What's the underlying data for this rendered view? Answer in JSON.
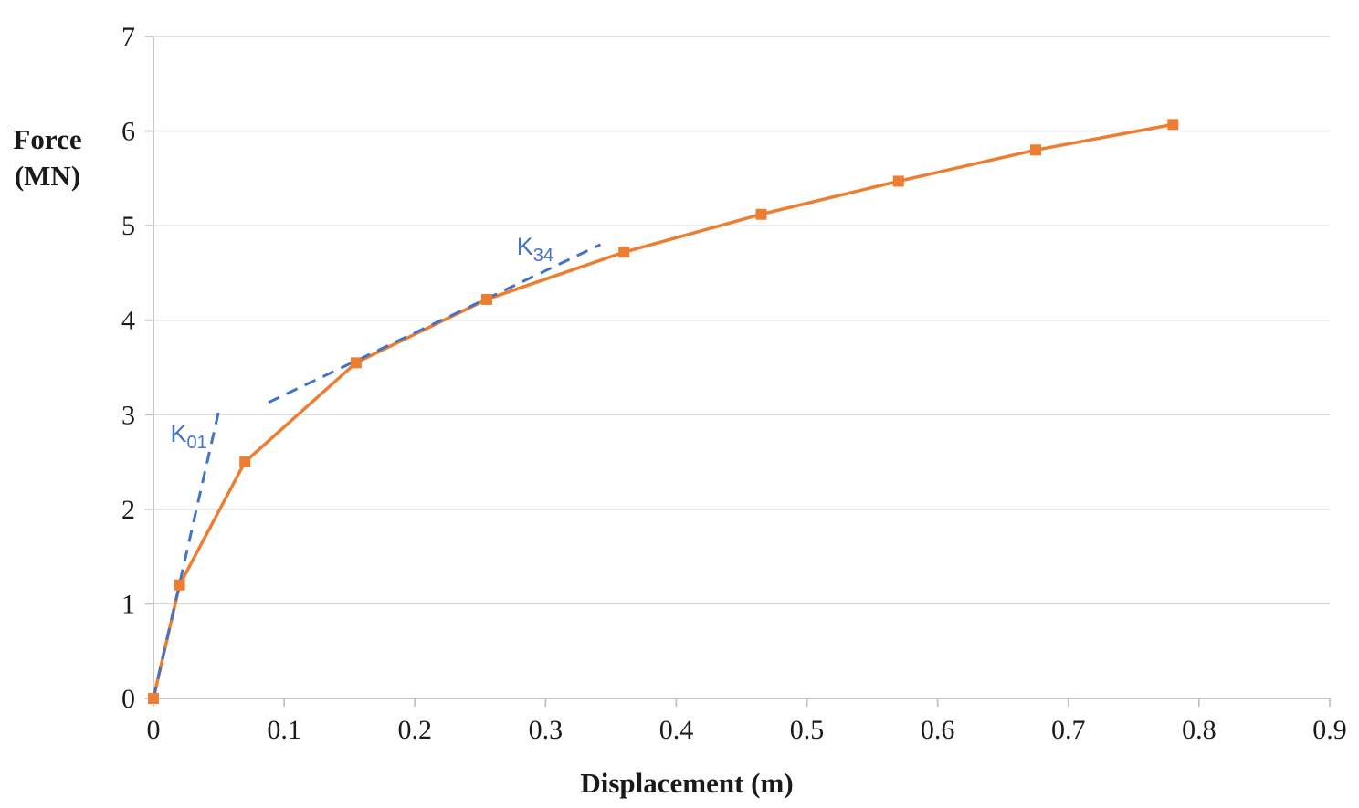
{
  "chart_data": {
    "type": "line",
    "title": "",
    "xlabel": "Displacement (m)",
    "ylabel": "Force (MN)",
    "ylabel_lines": [
      "Force",
      "(MN)"
    ],
    "xlim": [
      0,
      0.9
    ],
    "ylim": [
      0,
      7
    ],
    "grid": {
      "horizontal": true,
      "vertical": false
    },
    "legend": "none",
    "x_ticks": [
      {
        "v": 0.0,
        "label": "0"
      },
      {
        "v": 0.1,
        "label": "0.1"
      },
      {
        "v": 0.2,
        "label": "0.2"
      },
      {
        "v": 0.3,
        "label": "0.3"
      },
      {
        "v": 0.4,
        "label": "0.4"
      },
      {
        "v": 0.5,
        "label": "0.5"
      },
      {
        "v": 0.6,
        "label": "0.6"
      },
      {
        "v": 0.7,
        "label": "0.7"
      },
      {
        "v": 0.8,
        "label": "0.8"
      },
      {
        "v": 0.9,
        "label": "0.9"
      }
    ],
    "y_ticks": [
      {
        "v": 0,
        "label": "0"
      },
      {
        "v": 1,
        "label": "1"
      },
      {
        "v": 2,
        "label": "2"
      },
      {
        "v": 3,
        "label": "3"
      },
      {
        "v": 4,
        "label": "4"
      },
      {
        "v": 5,
        "label": "5"
      },
      {
        "v": 6,
        "label": "6"
      },
      {
        "v": 7,
        "label": "7"
      }
    ],
    "series": [
      {
        "name": "force-displacement-curve",
        "color": "#ED7D31",
        "marker": "square",
        "points": [
          [
            0.0,
            0.0
          ],
          [
            0.02,
            1.2
          ],
          [
            0.07,
            2.5
          ],
          [
            0.155,
            3.55
          ],
          [
            0.255,
            4.22
          ],
          [
            0.36,
            4.72
          ],
          [
            0.465,
            5.12
          ],
          [
            0.57,
            5.47
          ],
          [
            0.675,
            5.8
          ],
          [
            0.78,
            6.07
          ]
        ]
      }
    ],
    "stiffness_lines": [
      {
        "name": "K01",
        "label_main": "K",
        "label_sub": "01",
        "color": "#4472C4",
        "x1": 0.0,
        "y1": 0.0,
        "x2": 0.05,
        "y2": 3.04,
        "label_x": 0.027,
        "label_y": 2.8
      },
      {
        "name": "K34",
        "label_main": "K",
        "label_sub": "34",
        "color": "#4472C4",
        "x1": 0.088,
        "y1": 3.13,
        "x2": 0.342,
        "y2": 4.8,
        "label_x": 0.292,
        "label_y": 4.78
      }
    ],
    "colors": {
      "grid": "#D9D9D9",
      "axis": "#BFBFBF",
      "text": "#1a1a1a",
      "series": "#ED7D31",
      "stiffness": "#4472C4",
      "background": "#FFFFFF"
    }
  }
}
